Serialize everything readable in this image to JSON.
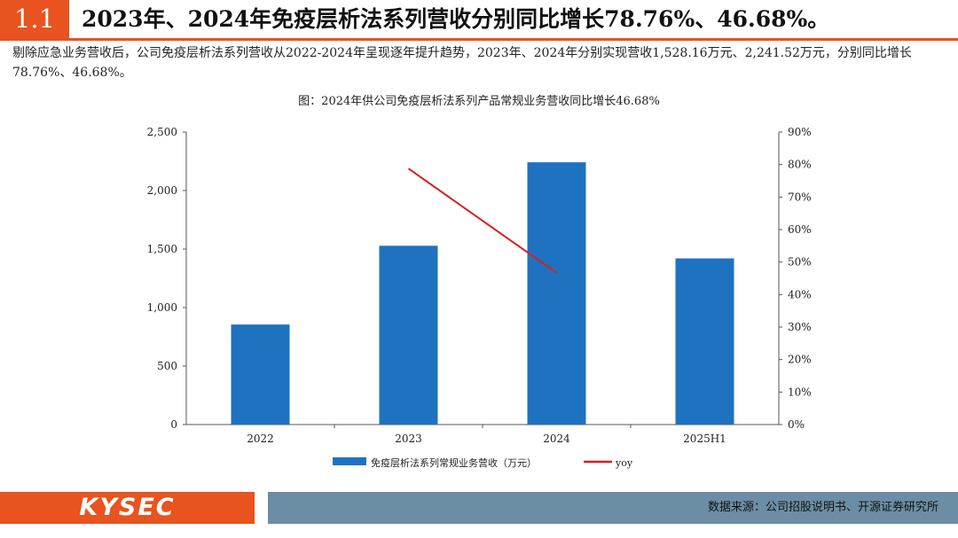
{
  "header": {
    "section_number": "1.1",
    "title": "2023年、2024年免疫层析法系列营收分别同比增长78.76%、46.68%。"
  },
  "summary": "剔除应急业务营收后，公司免疫层析法系列营收从2022-2024年呈现逐年提升趋势，2023年、2024年分别实现营收1,528.16万元、2,241.52万元，分别同比增长78.76%、46.68%。",
  "chart_data": {
    "type": "bar",
    "title": "图：2024年供公司免疫层析法系列产品常规业务营收同比增长46.68%",
    "categories": [
      "2022",
      "2023",
      "2024",
      "2025H1"
    ],
    "series": [
      {
        "name": "免疫层析法系列常规业务营收（万元）",
        "type": "bar",
        "axis": "left",
        "values": [
          855,
          1528.16,
          2241.52,
          1420
        ]
      },
      {
        "name": "yoy",
        "type": "line",
        "axis": "right",
        "values": [
          null,
          78.76,
          46.68,
          null
        ]
      }
    ],
    "ylim_left": [
      0,
      2500
    ],
    "ylim_right": [
      0,
      90
    ],
    "yticks_left": [
      "0",
      "500",
      "1,000",
      "1,500",
      "2,000",
      "2,500"
    ],
    "yticks_right": [
      "0%",
      "10%",
      "20%",
      "30%",
      "40%",
      "50%",
      "60%",
      "70%",
      "80%",
      "90%"
    ],
    "bar_color": "#1f72c0",
    "line_color": "#d62020",
    "legend_position": "bottom"
  },
  "footer": {
    "logo": "KYSEC",
    "source": "数据来源：公司招股说明书、开源证券研究所"
  }
}
